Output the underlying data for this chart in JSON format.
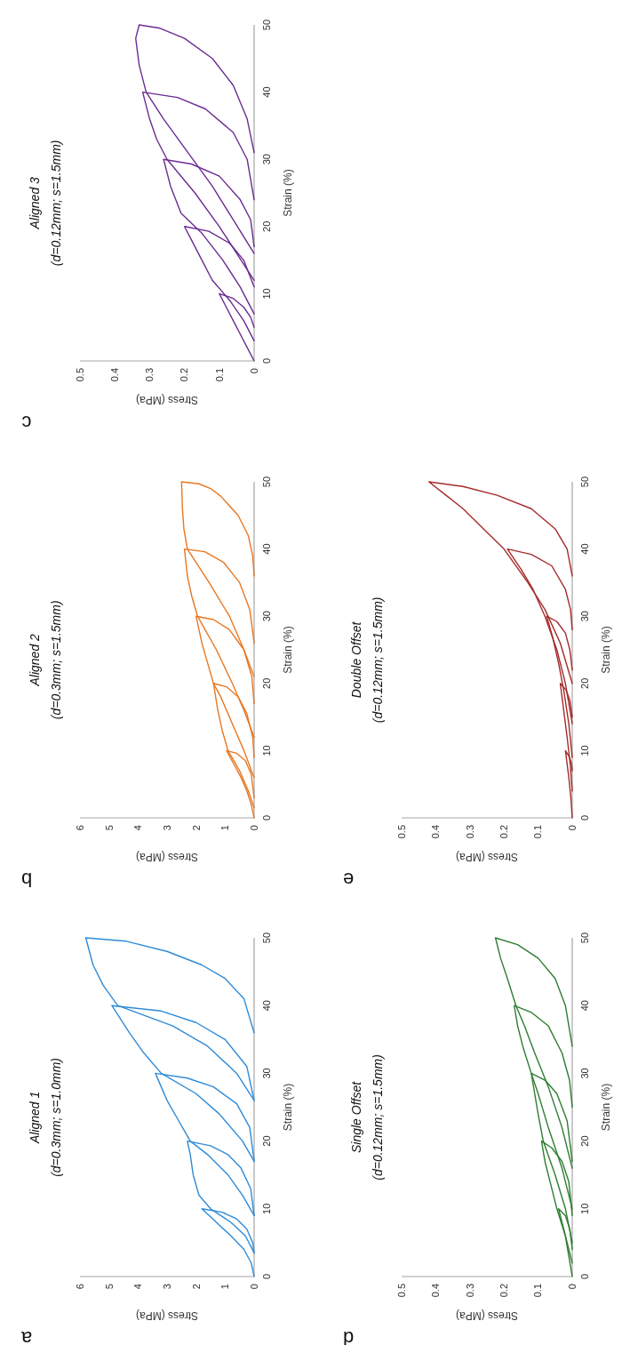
{
  "chart_data": [
    {
      "type": "line",
      "title": "Aligned 1",
      "subtitle": "(d=0.3mm; s=1.0mm)",
      "xlabel": "Stress (MPa)",
      "ylabel": "Strain (%)",
      "annotations": [
        "a"
      ],
      "xlim": [
        6,
        0
      ],
      "xticks": [
        6,
        5,
        4,
        3,
        2,
        1,
        0
      ],
      "ylim": [
        0,
        50
      ],
      "yticks": [
        0,
        10,
        20,
        30,
        40,
        50
      ],
      "series": [
        {
          "color": "#2e8bd8",
          "values": [
            0,
            2,
            4,
            6,
            8,
            10,
            9.5,
            8.5,
            7,
            5,
            3.5
          ],
          "x": [
            0,
            0.1,
            0.35,
            0.8,
            1.3,
            1.8,
            1.1,
            0.6,
            0.25,
            0.05,
            0
          ]
        },
        {
          "color": "#2e8bd8",
          "values": [
            3.5,
            6,
            8,
            10,
            12,
            15,
            18,
            20,
            19.3,
            18,
            16,
            13,
            9
          ],
          "x": [
            0,
            0.3,
            0.8,
            1.5,
            1.9,
            2.1,
            2.2,
            2.3,
            1.5,
            0.9,
            0.45,
            0.12,
            0
          ]
        },
        {
          "color": "#2e8bd8",
          "values": [
            9,
            12,
            15,
            18,
            20,
            23,
            26,
            30,
            29.3,
            28,
            25.5,
            22,
            17
          ],
          "x": [
            0,
            0.4,
            0.9,
            1.6,
            2.2,
            2.6,
            3.0,
            3.4,
            2.3,
            1.4,
            0.6,
            0.15,
            0
          ]
        },
        {
          "color": "#2e8bd8",
          "values": [
            17,
            20,
            24,
            27,
            30,
            33,
            36,
            40,
            39.2,
            37.5,
            35,
            31,
            26
          ],
          "x": [
            0,
            0.4,
            1.2,
            2.0,
            3.2,
            3.8,
            4.3,
            4.9,
            3.2,
            2.0,
            1.0,
            0.25,
            0
          ]
        },
        {
          "color": "#2e8bd8",
          "values": [
            26,
            30,
            34,
            37,
            40,
            43,
            46,
            50,
            49.5,
            48,
            46,
            44,
            41,
            36
          ],
          "x": [
            0,
            0.6,
            1.6,
            2.8,
            4.7,
            5.2,
            5.55,
            5.8,
            4.4,
            3.0,
            1.8,
            1.0,
            0.35,
            0
          ]
        }
      ]
    },
    {
      "type": "line",
      "title": "Aligned 2",
      "subtitle": "(d=0.3mm; s=1.5mm)",
      "xlabel": "Stress (MPa)",
      "ylabel": "Strain (%)",
      "annotations": [
        "b"
      ],
      "xlim": [
        6,
        0
      ],
      "xticks": [
        6,
        5,
        4,
        3,
        2,
        1,
        0
      ],
      "ylim": [
        0,
        50
      ],
      "yticks": [
        0,
        10,
        20,
        30,
        40,
        50
      ],
      "series": [
        {
          "color": "#e87722",
          "values": [
            0,
            2,
            4,
            6,
            8,
            10,
            9.6,
            8.5,
            6.5,
            3
          ],
          "x": [
            0,
            0.1,
            0.25,
            0.45,
            0.7,
            0.95,
            0.6,
            0.3,
            0.1,
            0
          ]
        },
        {
          "color": "#e87722",
          "values": [
            1.5,
            4,
            7,
            10,
            13,
            16,
            20,
            19.5,
            18,
            15.5,
            12,
            9
          ],
          "x": [
            0,
            0.2,
            0.5,
            0.9,
            1.1,
            1.25,
            1.4,
            0.95,
            0.55,
            0.25,
            0.05,
            0
          ]
        },
        {
          "color": "#e87722",
          "values": [
            6,
            10,
            14,
            18,
            20,
            23,
            26,
            30,
            29.5,
            28,
            25,
            21,
            17
          ],
          "x": [
            0,
            0.35,
            0.75,
            1.15,
            1.4,
            1.6,
            1.8,
            2.0,
            1.4,
            0.85,
            0.35,
            0.08,
            0
          ]
        },
        {
          "color": "#e87722",
          "values": [
            12,
            16,
            20,
            25,
            30,
            33,
            36,
            40,
            39.6,
            38,
            35,
            31,
            26
          ],
          "x": [
            0,
            0.35,
            0.75,
            1.3,
            1.95,
            2.15,
            2.3,
            2.4,
            1.7,
            1.05,
            0.5,
            0.15,
            0
          ]
        },
        {
          "color": "#e87722",
          "values": [
            21,
            25,
            30,
            35,
            40,
            43,
            46,
            50,
            49.7,
            49,
            47.9,
            45,
            42,
            39,
            36
          ],
          "x": [
            0,
            0.35,
            0.85,
            1.55,
            2.3,
            2.42,
            2.47,
            2.5,
            1.9,
            1.5,
            1.16,
            0.55,
            0.2,
            0.05,
            0
          ]
        }
      ]
    },
    {
      "type": "line",
      "title": "Aligned 3",
      "subtitle": "(d=0.12mm; s=1.5mm)",
      "xlabel": "Stress (MPa)",
      "ylabel": "Strain (%)",
      "annotations": [
        "c"
      ],
      "xlim": [
        0.5,
        0
      ],
      "xticks": [
        0.5,
        0.4,
        0.3,
        0.2,
        0.1,
        0
      ],
      "ylim": [
        0,
        50
      ],
      "yticks": [
        0,
        10,
        20,
        30,
        40,
        50
      ],
      "series": [
        {
          "color": "#6a2c91",
          "values": [
            0,
            2,
            4,
            6,
            8,
            10,
            9.3,
            8,
            6.5,
            5
          ],
          "x": [
            0,
            0.02,
            0.04,
            0.06,
            0.08,
            0.1,
            0.06,
            0.03,
            0.01,
            0
          ]
        },
        {
          "color": "#6a2c91",
          "values": [
            3,
            6,
            9,
            12,
            15,
            18,
            20,
            19.3,
            17.5,
            15,
            11
          ],
          "x": [
            0,
            0.03,
            0.07,
            0.12,
            0.15,
            0.18,
            0.2,
            0.13,
            0.07,
            0.03,
            0
          ]
        },
        {
          "color": "#6a2c91",
          "values": [
            7,
            11,
            15,
            19,
            22,
            26,
            30,
            29.3,
            27.5,
            24,
            21,
            17
          ],
          "x": [
            0,
            0.04,
            0.09,
            0.15,
            0.21,
            0.24,
            0.26,
            0.18,
            0.1,
            0.04,
            0.01,
            0
          ]
        },
        {
          "color": "#6a2c91",
          "values": [
            12,
            16,
            20,
            25,
            30,
            33,
            36,
            40,
            39.2,
            37.5,
            34,
            30,
            24
          ],
          "x": [
            0,
            0.05,
            0.1,
            0.17,
            0.25,
            0.28,
            0.3,
            0.32,
            0.22,
            0.14,
            0.06,
            0.02,
            0
          ]
        },
        {
          "color": "#6a2c91",
          "values": [
            16,
            21,
            26,
            31,
            36,
            40,
            44,
            48,
            50,
            49.5,
            48,
            45,
            41,
            36,
            31
          ],
          "x": [
            0,
            0.06,
            0.12,
            0.19,
            0.26,
            0.31,
            0.33,
            0.34,
            0.33,
            0.27,
            0.2,
            0.12,
            0.06,
            0.02,
            0
          ]
        }
      ]
    },
    {
      "type": "line",
      "title": "Single Offset",
      "subtitle": "(d=0.12mm; s=1.5mm)",
      "xlabel": "Stress (MPa)",
      "ylabel": "Strain (%)",
      "annotations": [
        "d"
      ],
      "xlim": [
        0.5,
        0
      ],
      "xticks": [
        0.5,
        0.4,
        0.3,
        0.2,
        0.1,
        0
      ],
      "ylim": [
        0,
        50
      ],
      "yticks": [
        0,
        10,
        20,
        30,
        40,
        50
      ],
      "series": [
        {
          "color": "#2e7d32",
          "values": [
            0,
            3,
            6,
            8,
            10,
            9,
            7,
            4
          ],
          "x": [
            0,
            0.01,
            0.02,
            0.03,
            0.04,
            0.02,
            0.007,
            0
          ]
        },
        {
          "color": "#2e7d32",
          "values": [
            2,
            6,
            10,
            14,
            17,
            20,
            19,
            17,
            14,
            9
          ],
          "x": [
            0,
            0.02,
            0.045,
            0.065,
            0.08,
            0.09,
            0.06,
            0.03,
            0.01,
            0
          ]
        },
        {
          "color": "#2e7d32",
          "values": [
            5,
            10,
            15,
            20,
            24,
            27,
            30,
            29,
            27,
            23,
            17
          ],
          "x": [
            0,
            0.02,
            0.05,
            0.085,
            0.1,
            0.11,
            0.12,
            0.08,
            0.045,
            0.015,
            0
          ]
        },
        {
          "color": "#2e7d32",
          "values": [
            10,
            16,
            22,
            27,
            30,
            34,
            37,
            40,
            39,
            37,
            33,
            29,
            25
          ],
          "x": [
            0,
            0.03,
            0.07,
            0.1,
            0.12,
            0.145,
            0.16,
            0.17,
            0.12,
            0.07,
            0.03,
            0.008,
            0
          ]
        },
        {
          "color": "#2e7d32",
          "values": [
            16,
            22,
            28,
            33,
            37,
            40,
            44,
            47,
            50,
            49,
            47,
            44,
            40,
            34
          ],
          "x": [
            0,
            0.03,
            0.07,
            0.11,
            0.14,
            0.165,
            0.19,
            0.21,
            0.225,
            0.16,
            0.1,
            0.05,
            0.02,
            0
          ]
        }
      ]
    },
    {
      "type": "line",
      "title": "Double Offset",
      "subtitle": "(d=0.12mm; s=1.5mm)",
      "xlabel": "Stress (MPa)",
      "ylabel": "Strain (%)",
      "annotations": [
        "e"
      ],
      "xlim": [
        0.5,
        0
      ],
      "xticks": [
        0.5,
        0.4,
        0.3,
        0.2,
        0.1,
        0
      ],
      "ylim": [
        0,
        50
      ],
      "yticks": [
        0,
        10,
        20,
        30,
        40,
        50
      ],
      "series": [
        {
          "color": "#a52a2a",
          "values": [
            0,
            3,
            6,
            8,
            10,
            9,
            8,
            7
          ],
          "x": [
            0,
            0.004,
            0.01,
            0.015,
            0.02,
            0.008,
            0.002,
            0
          ]
        },
        {
          "color": "#a52a2a",
          "values": [
            4,
            8,
            12,
            16,
            20,
            19,
            17.5,
            15
          ],
          "x": [
            0,
            0.006,
            0.015,
            0.025,
            0.035,
            0.018,
            0.007,
            0
          ]
        },
        {
          "color": "#a52a2a",
          "values": [
            9,
            14,
            19,
            23,
            27,
            30,
            29.2,
            27.5,
            25,
            22
          ],
          "x": [
            0,
            0.01,
            0.025,
            0.04,
            0.058,
            0.075,
            0.045,
            0.02,
            0.007,
            0
          ]
        },
        {
          "color": "#a52a2a",
          "values": [
            14,
            20,
            25,
            30,
            34,
            37,
            40,
            39.2,
            37.5,
            34,
            31,
            28
          ],
          "x": [
            0,
            0.02,
            0.045,
            0.08,
            0.115,
            0.15,
            0.19,
            0.12,
            0.06,
            0.02,
            0.005,
            0
          ]
        },
        {
          "color": "#a52a2a",
          "values": [
            20,
            26,
            31,
            35,
            40,
            43,
            46,
            48,
            50,
            49.3,
            48,
            46,
            43,
            40,
            36
          ],
          "x": [
            0,
            0.035,
            0.08,
            0.13,
            0.2,
            0.26,
            0.32,
            0.37,
            0.42,
            0.32,
            0.22,
            0.12,
            0.05,
            0.015,
            0
          ]
        }
      ]
    }
  ]
}
